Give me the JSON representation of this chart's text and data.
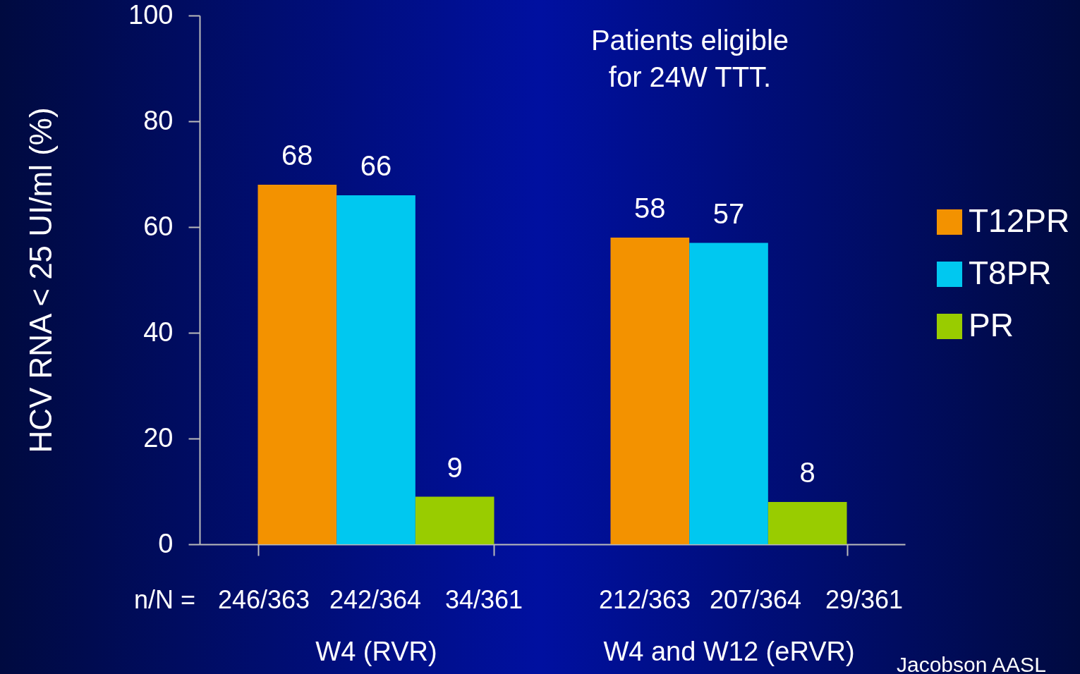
{
  "chart_data": {
    "type": "bar",
    "ylabel": "HCV RNA < 25 UI/ml (%)",
    "categories": [
      "W4 (RVR)",
      "W4 and W12 (eRVR)"
    ],
    "series": [
      {
        "name": "T12PR",
        "color": "#f39200",
        "values": [
          68,
          58
        ]
      },
      {
        "name": "T8PR",
        "color": "#00c8f0",
        "values": [
          66,
          57
        ]
      },
      {
        "name": "PR",
        "color": "#99cc00",
        "values": [
          9,
          8
        ]
      }
    ],
    "ylim": [
      0,
      100
    ],
    "yticks": [
      0,
      20,
      40,
      60,
      80,
      100
    ],
    "data_labels": true,
    "legend": "right",
    "grid": false,
    "annotations": [
      "Patients eligible\nfor 24W TTT.",
      "n/N =",
      "Jacobson AASL",
      "246/363",
      "242/364",
      "34/361",
      "212/363",
      "207/364",
      "29/361"
    ]
  }
}
